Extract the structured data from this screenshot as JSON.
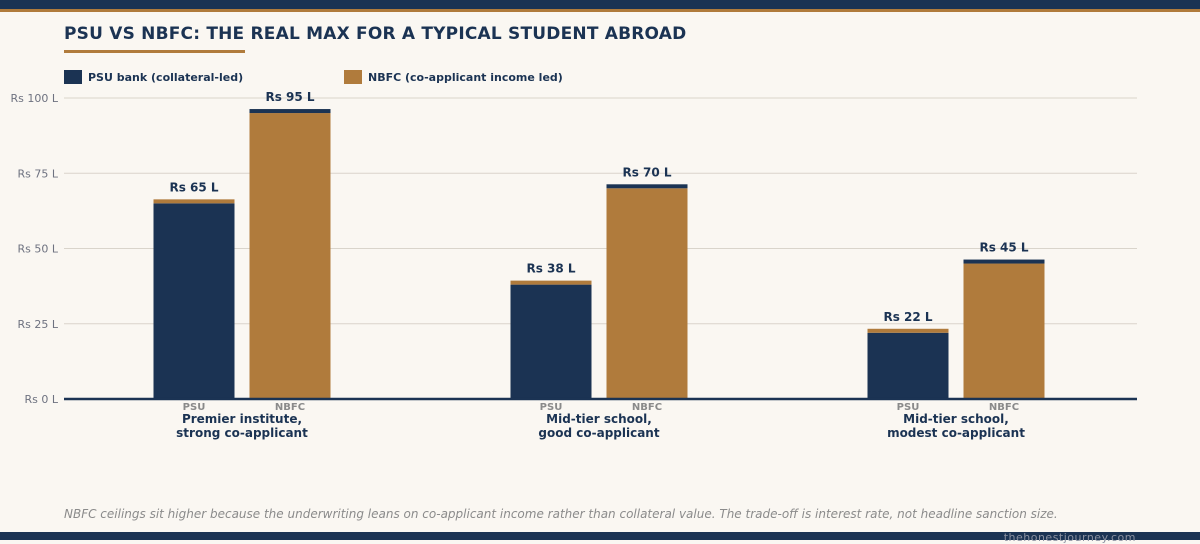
{
  "title": "PSU VS NBFC: THE REAL MAX FOR A TYPICAL STUDENT ABROAD",
  "legend": [
    {
      "label": "PSU bank (collateral-led)",
      "color": "#1b3353"
    },
    {
      "label": "NBFC (co-applicant income led)",
      "color": "#b07b3c"
    }
  ],
  "note": "NBFC ceilings sit higher because the underwriting leans on co-applicant income rather than collateral value. The trade-off is interest rate, not headline sanction size.",
  "footer": "thehonestjourney.com",
  "chart_data": {
    "type": "bar",
    "title": "PSU VS NBFC: THE REAL MAX FOR A TYPICAL STUDENT ABROAD",
    "xlabel": "",
    "ylabel": "",
    "ylim": [
      0,
      100
    ],
    "yticks": [
      0,
      25,
      50,
      75,
      100
    ],
    "ytick_labels": [
      "Rs 0 L",
      "Rs 25 L",
      "Rs 50 L",
      "Rs 75 L",
      "Rs 100 L"
    ],
    "grid": true,
    "legend_position": "top-left",
    "categories": [
      [
        "Premier institute,",
        "strong co-applicant"
      ],
      [
        "Mid-tier school,",
        "good co-applicant"
      ],
      [
        "Mid-tier school,",
        "modest co-applicant"
      ]
    ],
    "series": [
      {
        "name": "PSU bank (collateral-led)",
        "short": "PSU",
        "values": [
          65,
          38,
          22
        ],
        "labels": [
          "Rs 65 L",
          "Rs 38 L",
          "Rs 22 L"
        ],
        "color": "#1b3353",
        "cap_color": "#b07b3c"
      },
      {
        "name": "NBFC (co-applicant income led)",
        "short": "NBFC",
        "values": [
          95,
          70,
          45
        ],
        "labels": [
          "Rs 95 L",
          "Rs 70 L",
          "Rs 45 L"
        ],
        "color": "#b07b3c",
        "cap_color": "#1b3353"
      }
    ]
  }
}
